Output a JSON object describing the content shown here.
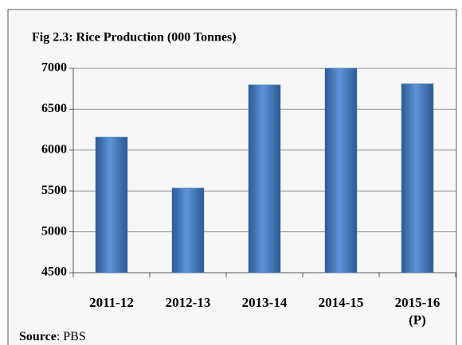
{
  "chart_data": {
    "type": "bar",
    "title": "Fig 2.3: Rice Production (000 Tonnes)",
    "categories": [
      "2011-12",
      "2012-13",
      "2013-14",
      "2014-15",
      "2015-16 (P)"
    ],
    "values": [
      6160,
      5536,
      6798,
      7003,
      6811
    ],
    "color": "#4a7ebb",
    "ylim": [
      4500,
      7000
    ],
    "yticks": [
      4500,
      5000,
      5500,
      6000,
      6500,
      7000
    ],
    "grid": true,
    "source_label": "Source",
    "source_text": ": PBS"
  }
}
